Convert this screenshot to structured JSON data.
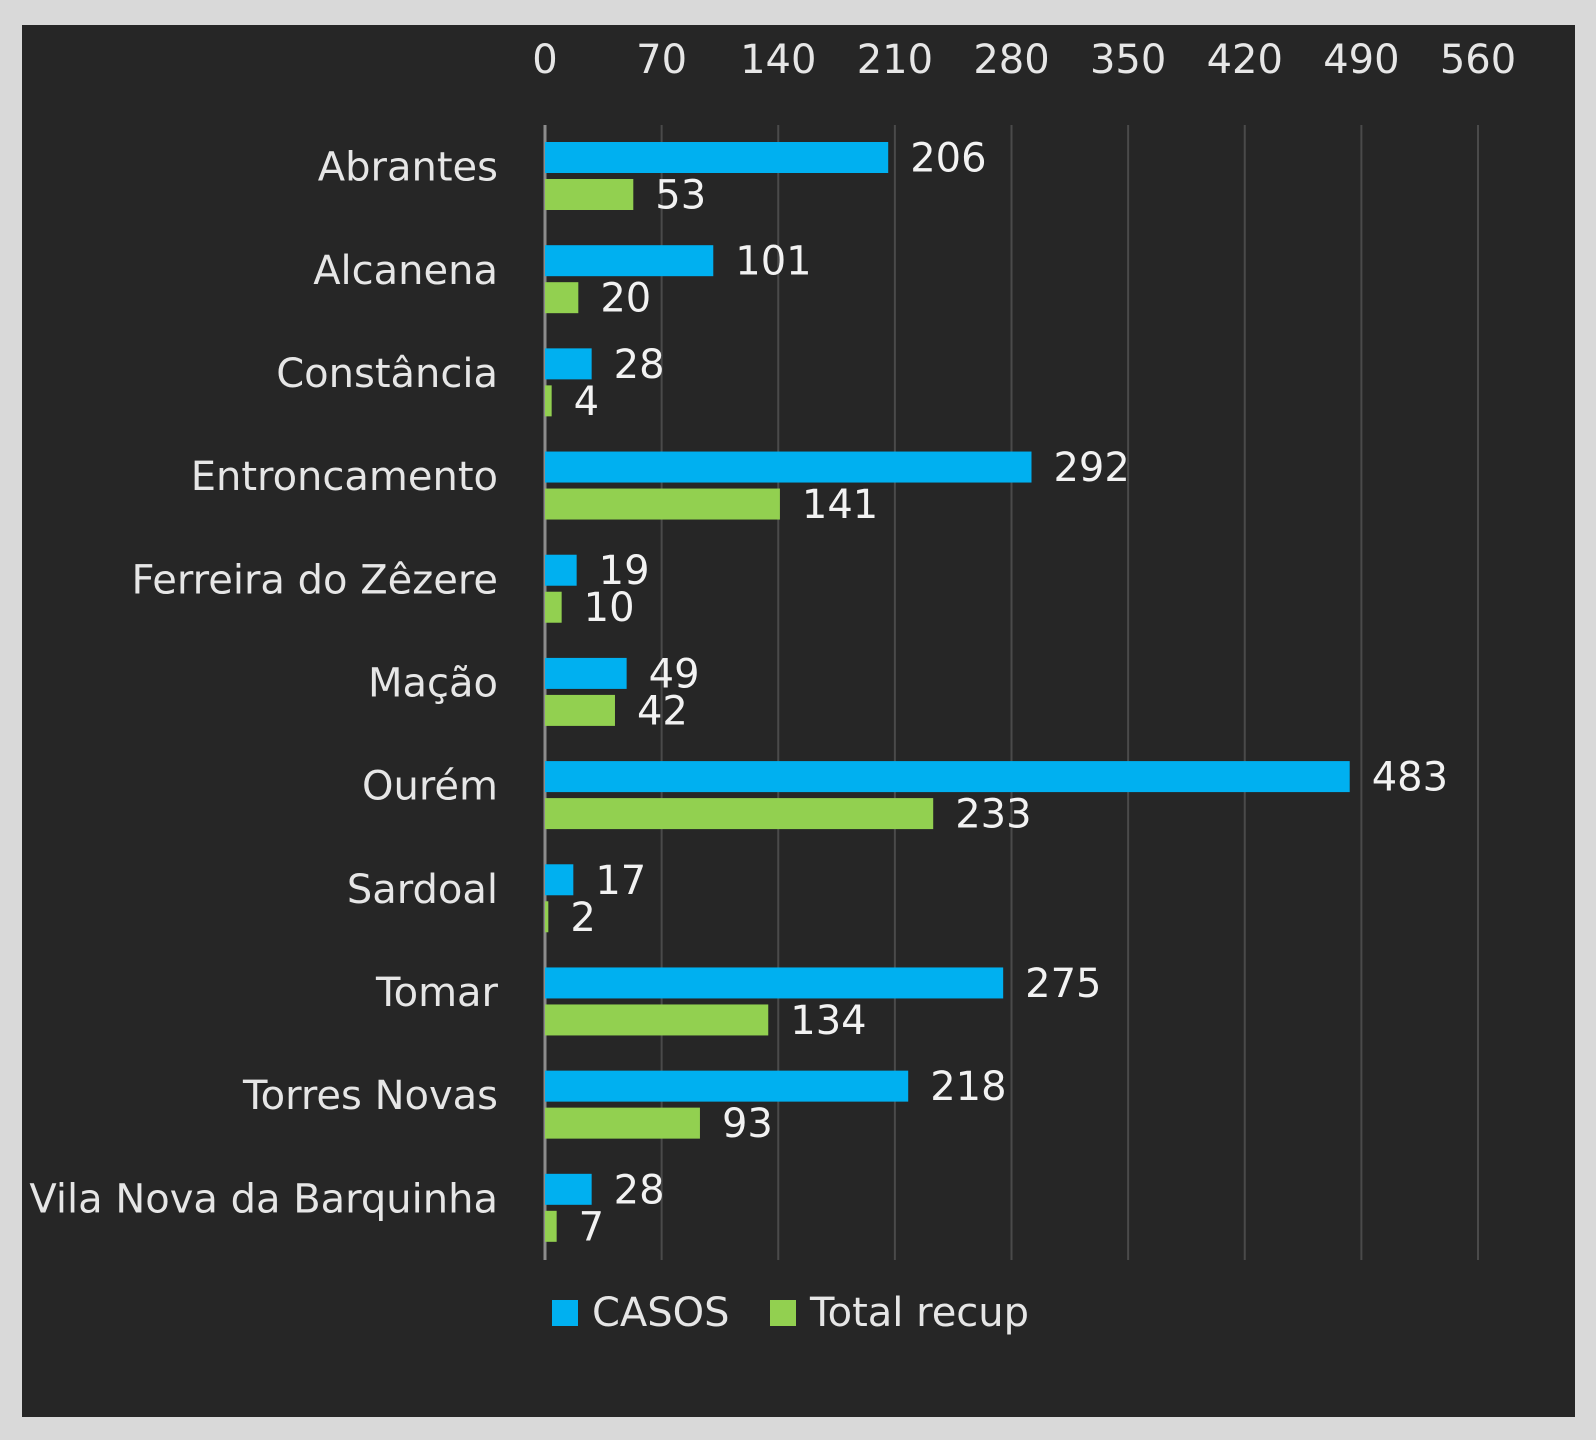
{
  "chart_data": {
    "type": "bar",
    "orientation": "horizontal",
    "categories": [
      "Abrantes",
      "Alcanena",
      "Constância",
      "Entroncamento",
      "Ferreira do Zêzere",
      "Mação",
      "Ourém",
      "Sardoal",
      "Tomar",
      "Torres Novas",
      "Vila Nova da Barquinha"
    ],
    "series": [
      {
        "name": "CASOS",
        "color": "#00b0f0",
        "values": [
          206,
          101,
          28,
          292,
          19,
          49,
          483,
          17,
          275,
          218,
          28
        ]
      },
      {
        "name": "Total recup",
        "color": "#92d050",
        "values": [
          53,
          20,
          4,
          141,
          10,
          42,
          233,
          2,
          134,
          93,
          7
        ]
      }
    ],
    "xlim": [
      0,
      560
    ],
    "xticks": [
      0,
      70,
      140,
      210,
      280,
      350,
      420,
      490,
      560
    ],
    "xaxis_position": "top",
    "grid": true,
    "legend": "bottom",
    "data_labels": true
  }
}
